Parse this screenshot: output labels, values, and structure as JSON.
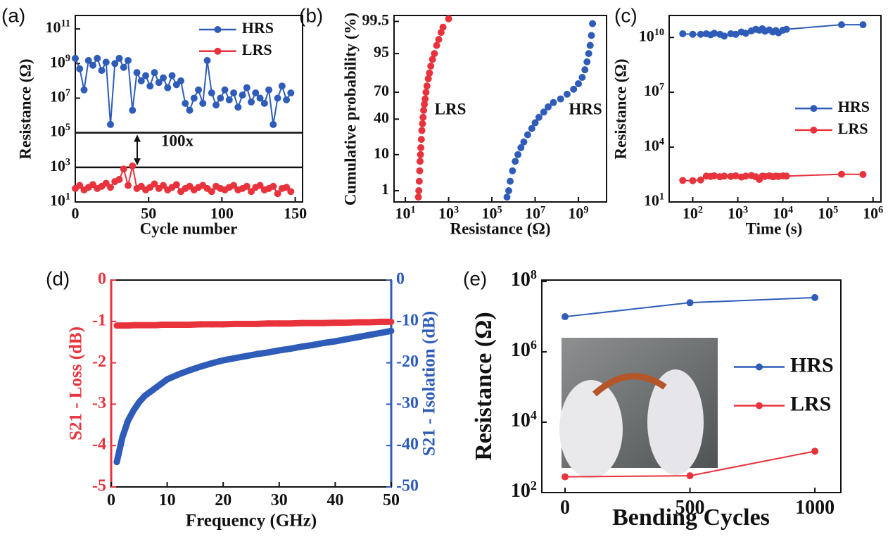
{
  "chart_data": [
    {
      "type": "line",
      "label": "(a)",
      "xlabel": "Cycle number",
      "ylabel": "Resistance (Ω)",
      "xlim": [
        0,
        155
      ],
      "ylim": [
        10,
        600000000000.0
      ],
      "yscale": "log",
      "xticks": [
        0,
        50,
        100,
        150
      ],
      "yticks": [
        {
          "value": 10,
          "label": "10^1"
        },
        {
          "value": 1000,
          "label": "10^3"
        },
        {
          "value": 100000,
          "label": "10^5"
        },
        {
          "value": 10000000,
          "label": "10^7"
        },
        {
          "value": 1000000000,
          "label": "10^9"
        },
        {
          "value": 100000000000,
          "label": "10^11"
        }
      ],
      "x": [
        0,
        3,
        6,
        9,
        12,
        15,
        18,
        21,
        24,
        27,
        30,
        33,
        36,
        39,
        42,
        45,
        48,
        51,
        54,
        57,
        60,
        63,
        66,
        69,
        72,
        75,
        78,
        81,
        84,
        87,
        90,
        93,
        96,
        99,
        102,
        105,
        108,
        111,
        114,
        117,
        120,
        123,
        126,
        129,
        132,
        135,
        138,
        141,
        144,
        147
      ],
      "series": [
        {
          "name": "HRS",
          "color": "#2e5cb8",
          "values": [
            2000000000.0,
            500000000.0,
            30000000.0,
            1500000000.0,
            800000000.0,
            2000000000.0,
            400000000.0,
            1200000000.0,
            300000.0,
            1000000000.0,
            2000000000.0,
            600000000.0,
            1500000000.0,
            2000000.0,
            300000000.0,
            100000000.0,
            200000000.0,
            50000000.0,
            300000000.0,
            80000000.0,
            150000000.0,
            40000000.0,
            200000000.0,
            60000000.0,
            100000000.0,
            5000000.0,
            2000000.0,
            10000000.0,
            30000000.0,
            5000000.0,
            1500000000.0,
            20000000.0,
            4000000.0,
            10000000.0,
            30000000.0,
            8000000.0,
            20000000.0,
            3000000.0,
            15000000.0,
            40000000.0,
            6000000.0,
            20000000.0,
            10000000.0,
            5000000.0,
            30000000.0,
            300000.0,
            10000000.0,
            50000000.0,
            8000000.0,
            20000000.0
          ]
        },
        {
          "name": "LRS",
          "color": "#e8323c",
          "values": [
            60,
            90,
            50,
            70,
            100,
            60,
            80,
            120,
            70,
            150,
            200,
            800,
            90,
            1200,
            60,
            80,
            50,
            70,
            110,
            60,
            90,
            50,
            70,
            100,
            40,
            60,
            80,
            50,
            70,
            90,
            60,
            40,
            80,
            60,
            50,
            70,
            90,
            50,
            60,
            80,
            40,
            70,
            90,
            50,
            60,
            80,
            30,
            60,
            70,
            40
          ]
        }
      ],
      "legend": "upper right",
      "reference_lines": [
        100000,
        1000
      ],
      "annotations": [
        "100x"
      ]
    },
    {
      "type": "scatter",
      "label": "(b)",
      "xlabel": "Resistance (Ω)",
      "ylabel": "Cumulative probability (%)",
      "xlim": [
        3,
        20000000000.0
      ],
      "xscale": "log",
      "ylim": [
        0.4,
        99.7
      ],
      "yscale": "probability",
      "xticks": [
        {
          "value": 10,
          "label": "10^1"
        },
        {
          "value": 1000,
          "label": "10^3"
        },
        {
          "value": 100000,
          "label": "10^5"
        },
        {
          "value": 10000000,
          "label": "10^7"
        },
        {
          "value": 1000000000,
          "label": "10^9"
        }
      ],
      "yticks": [
        1,
        10,
        40,
        70,
        95,
        99.5
      ],
      "series": [
        {
          "name": "LRS",
          "color": "#e8323c",
          "x": [
            40,
            42,
            44,
            46,
            48,
            50,
            52,
            55,
            58,
            62,
            66,
            70,
            76,
            82,
            90,
            100,
            115,
            130,
            150,
            180,
            220,
            280,
            350,
            450,
            550,
            1000
          ],
          "values": [
            0.6,
            1,
            2,
            4,
            7,
            10,
            14,
            20,
            28,
            35,
            42,
            50,
            57,
            63,
            70,
            76,
            82,
            86,
            90,
            93,
            95,
            97,
            98,
            98.8,
            99.2,
            99.6
          ]
        },
        {
          "name": "HRS",
          "color": "#2e5cb8",
          "x": [
            500000.0,
            600000.0,
            700000.0,
            900000.0,
            1200000.0,
            1600000.0,
            2200000.0,
            3000000.0,
            4500000.0,
            7000000.0,
            10000000.0,
            15000000.0,
            25000000.0,
            40000000.0,
            70000000.0,
            150000000.0,
            300000000.0,
            600000000.0,
            1000000000.0,
            1500000000.0,
            2000000000.0,
            2500000000.0,
            3000000000.0,
            3500000000.0,
            4000000000.0,
            4500000000.0
          ],
          "values": [
            0.6,
            1,
            2,
            4,
            7,
            10,
            14,
            18,
            24,
            30,
            36,
            42,
            48,
            54,
            59,
            63,
            68,
            73,
            78,
            83,
            88,
            92,
            95,
            97,
            98.5,
            99.4
          ]
        }
      ],
      "annotations": [
        "LRS",
        "HRS"
      ]
    },
    {
      "type": "line",
      "label": "(c)",
      "xlabel": "Time (s)",
      "ylabel": "Resistance (Ω)",
      "xlim": [
        30,
        1500000.0
      ],
      "xscale": "log",
      "ylim": [
        10,
        160000000000.0
      ],
      "yscale": "log",
      "xticks": [
        {
          "value": 100,
          "label": "10^2"
        },
        {
          "value": 1000,
          "label": "10^3"
        },
        {
          "value": 10000,
          "label": "10^4"
        },
        {
          "value": 100000,
          "label": "10^5"
        },
        {
          "value": 1000000,
          "label": "10^6"
        }
      ],
      "yticks": [
        {
          "value": 10,
          "label": "10^1"
        },
        {
          "value": 10000,
          "label": "10^4"
        },
        {
          "value": 10000000,
          "label": "10^7"
        },
        {
          "value": 10000000000,
          "label": "10^10"
        }
      ],
      "x": [
        60,
        100,
        150,
        200,
        250,
        300,
        400,
        500,
        700,
        900,
        1200,
        1500,
        2000,
        2500,
        3000,
        3500,
        4000,
        5000,
        6000,
        7000,
        8000,
        10000,
        12000,
        200000,
        600000
      ],
      "series": [
        {
          "name": "HRS",
          "color": "#2e5cb8",
          "values": [
            16000000000.0,
            15000000000.0,
            15000000000.0,
            16000000000.0,
            14000000000.0,
            17000000000.0,
            15000000000.0,
            12000000000.0,
            16000000000.0,
            15000000000.0,
            20000000000.0,
            17000000000.0,
            23000000000.0,
            28000000000.0,
            25000000000.0,
            30000000000.0,
            22000000000.0,
            26000000000.0,
            20000000000.0,
            24000000000.0,
            18000000000.0,
            25000000000.0,
            28000000000.0,
            50000000000.0,
            50000000000.0
          ]
        },
        {
          "name": "LRS",
          "color": "#e8323c",
          "values": [
            150,
            145,
            160,
            260,
            250,
            270,
            240,
            260,
            250,
            270,
            230,
            260,
            280,
            240,
            170,
            260,
            250,
            270,
            240,
            260,
            250,
            270,
            260,
            330,
            320
          ]
        }
      ],
      "legend": "center right"
    },
    {
      "type": "line",
      "label": "(d)",
      "xlabel": "Frequency (GHz)",
      "ylabel": "S21 - Loss (dB)",
      "y2label": "S21 - Isolation (dB)",
      "xlim": [
        0,
        50
      ],
      "ylim": [
        -5,
        0
      ],
      "y2lim": [
        -50,
        0
      ],
      "xticks": [
        0,
        10,
        20,
        30,
        40,
        50
      ],
      "yticks": [
        0,
        -1,
        -2,
        -3,
        -4,
        -5
      ],
      "y2ticks": [
        0,
        -10,
        -20,
        -30,
        -40,
        -50
      ],
      "x": [
        1,
        2,
        3,
        4,
        5,
        6,
        7,
        8,
        9,
        10,
        12,
        14,
        16,
        18,
        20,
        22,
        24,
        26,
        28,
        30,
        32,
        34,
        36,
        38,
        40,
        42,
        44,
        46,
        48,
        50
      ],
      "series": [
        {
          "name": "S21 - Loss",
          "color": "#e8323c",
          "values": [
            -1.1,
            -1.1,
            -1.1,
            -1.09,
            -1.09,
            -1.09,
            -1.09,
            -1.09,
            -1.08,
            -1.08,
            -1.08,
            -1.08,
            -1.07,
            -1.07,
            -1.07,
            -1.06,
            -1.06,
            -1.06,
            -1.05,
            -1.05,
            -1.05,
            -1.04,
            -1.04,
            -1.04,
            -1.03,
            -1.03,
            -1.02,
            -1.02,
            -1.01,
            -1.01
          ]
        },
        {
          "name": "S21 - Isolation",
          "color": "#2e5cb8",
          "axis": "y2",
          "values": [
            -44,
            -38,
            -34,
            -31.5,
            -29.5,
            -28,
            -27,
            -26,
            -25,
            -24,
            -22.8,
            -21.8,
            -20.9,
            -20.1,
            -19.4,
            -18.9,
            -18.4,
            -17.9,
            -17.5,
            -17,
            -16.6,
            -16.1,
            -15.7,
            -15.2,
            -14.8,
            -14.3,
            -13.8,
            -13.3,
            -12.8,
            -12.3
          ]
        }
      ]
    },
    {
      "type": "line",
      "label": "(e)",
      "xlabel": "Bending Cycles",
      "ylabel": "Resistance (Ω)",
      "xlim": [
        -93,
        1104
      ],
      "ylim": [
        100,
        110000000.0
      ],
      "yscale": "log",
      "xticks": [
        0,
        500,
        1000
      ],
      "yticks": [
        {
          "value": 100,
          "label": "10^2"
        },
        {
          "value": 10000,
          "label": "10^4"
        },
        {
          "value": 1000000,
          "label": "10^6"
        },
        {
          "value": 100000000,
          "label": "10^8"
        }
      ],
      "x": [
        0,
        500,
        1000
      ],
      "series": [
        {
          "name": "HRS",
          "color": "#2e5cb8",
          "values": [
            10000000.0,
            25000000.0,
            35000000.0
          ]
        },
        {
          "name": "LRS",
          "color": "#e8323c",
          "values": [
            280,
            300,
            1500
          ]
        }
      ],
      "legend": "center right"
    }
  ]
}
